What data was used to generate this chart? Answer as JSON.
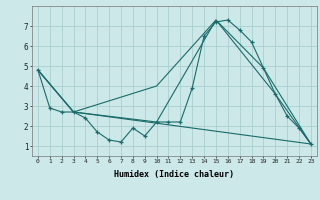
{
  "xlabel": "Humidex (Indice chaleur)",
  "ylabel": "",
  "bg_color": "#cce8e8",
  "grid_color": "#aacece",
  "line_color": "#1a6b6b",
  "xlim": [
    -0.5,
    23.5
  ],
  "ylim": [
    0.5,
    8.0
  ],
  "yticks": [
    1,
    2,
    3,
    4,
    5,
    6,
    7
  ],
  "xticks": [
    0,
    1,
    2,
    3,
    4,
    5,
    6,
    7,
    8,
    9,
    10,
    11,
    12,
    13,
    14,
    15,
    16,
    17,
    18,
    19,
    20,
    21,
    22,
    23
  ],
  "line1_x": [
    0,
    1,
    2,
    3,
    4,
    5,
    6,
    7,
    8,
    9,
    10,
    11,
    12,
    13,
    14,
    15,
    16,
    17,
    18,
    19,
    20,
    21,
    22,
    23
  ],
  "line1_y": [
    4.8,
    2.9,
    2.7,
    2.7,
    2.4,
    1.7,
    1.3,
    1.2,
    1.9,
    1.5,
    2.2,
    2.2,
    2.2,
    3.9,
    6.5,
    7.2,
    7.3,
    6.8,
    6.2,
    4.9,
    3.6,
    2.5,
    1.9,
    1.1
  ],
  "line2_x": [
    0,
    3,
    10,
    15,
    19,
    23
  ],
  "line2_y": [
    4.8,
    2.7,
    4.0,
    7.3,
    4.9,
    1.1
  ],
  "line3_x": [
    0,
    3,
    10,
    15,
    20,
    23
  ],
  "line3_y": [
    4.8,
    2.7,
    2.2,
    7.3,
    3.6,
    1.1
  ],
  "line4_x": [
    0,
    3,
    23
  ],
  "line4_y": [
    4.8,
    2.7,
    1.1
  ]
}
